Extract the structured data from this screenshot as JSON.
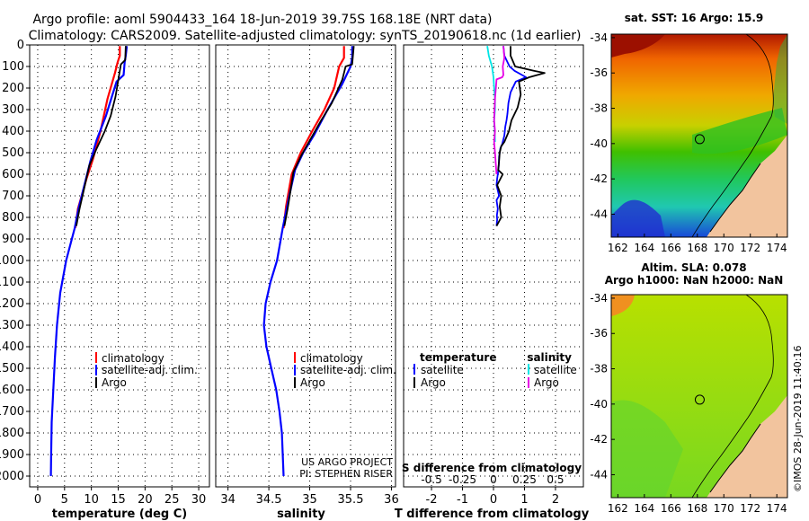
{
  "header": {
    "line1": "Argo profile: aoml 5904433_164 18-Jun-2019 39.75S 168.18E (NRT data)",
    "line2": "Climatology: CARS2009. Satellite-adjusted climatology: synTS_20190618.nc (1d earlier)"
  },
  "colors": {
    "climatology": "#ff0000",
    "satellite": "#0000ff",
    "argo": "#000000",
    "sat_salinity": "#00e5e5",
    "argo_salinity": "#e600e6"
  },
  "depth_axis": {
    "ticks": [
      0,
      100,
      200,
      300,
      400,
      500,
      600,
      700,
      800,
      900,
      1000,
      1100,
      1200,
      1300,
      1400,
      1500,
      1600,
      1700,
      1800,
      1900,
      2000
    ],
    "labels": [
      "0",
      "100",
      "200",
      "300",
      "400",
      "500",
      "600",
      "700",
      "800",
      "900",
      "1000",
      "1100",
      "1200",
      "1300",
      "1400",
      "1500",
      "1600",
      "1700",
      "1800",
      "1900",
      "2000"
    ]
  },
  "chart_data": [
    {
      "type": "line",
      "title": "",
      "xlabel": "temperature (deg C)",
      "xlim": [
        -1.5,
        32
      ],
      "ylim": [
        2050,
        0
      ],
      "xticks": [
        0,
        5,
        10,
        15,
        20,
        25,
        30
      ],
      "xtick_labels": [
        "0",
        "5",
        "10",
        "15",
        "20",
        "25",
        "30"
      ],
      "legend": {
        "position": "lower-middle",
        "entries": [
          "climatology",
          "satellite-adj. clim.",
          "Argo"
        ]
      },
      "series": [
        {
          "name": "climatology",
          "color": "#ff0000",
          "x": [
            15.3,
            15.3,
            14.9,
            14.4,
            13.0,
            11.7,
            10.3,
            9.1,
            7.5,
            7.0
          ],
          "y": [
            5,
            50,
            80,
            130,
            250,
            400,
            530,
            620,
            760,
            850
          ]
        },
        {
          "name": "satellite-adj. clim.",
          "color": "#0000ff",
          "x": [
            16.6,
            16.4,
            16.2,
            16.0,
            14.7,
            13.7,
            12.7,
            11.0,
            9.8,
            8.8,
            7.6,
            6.9,
            5.3,
            4.2,
            3.6,
            3.2,
            2.9,
            2.6,
            2.5,
            2.45
          ],
          "y": [
            5,
            50,
            80,
            140,
            170,
            250,
            330,
            440,
            540,
            640,
            760,
            850,
            1000,
            1150,
            1300,
            1450,
            1600,
            1750,
            1900,
            2000
          ]
        },
        {
          "name": "Argo",
          "color": "#000000",
          "x": [
            16.4,
            16.3,
            15.5,
            15.1,
            14.5,
            13.6,
            12.5,
            11.0,
            9.6,
            8.8,
            7.8,
            7.2
          ],
          "y": [
            5,
            70,
            90,
            150,
            240,
            330,
            400,
            480,
            560,
            650,
            760,
            840
          ]
        }
      ]
    },
    {
      "type": "line",
      "title": "",
      "xlabel": "salinity",
      "xlim": [
        33.85,
        36.05
      ],
      "ylim": [
        2050,
        0
      ],
      "xticks": [
        34,
        34.5,
        35,
        35.5,
        36
      ],
      "xtick_labels": [
        "34",
        "34.5",
        "35",
        "35.5",
        "36"
      ],
      "legend": {
        "position": "lower-middle",
        "entries": [
          "climatology",
          "satellite-adj. clim.",
          "Argo"
        ]
      },
      "annotation": [
        "US ARGO PROJECT",
        "PI: STEPHEN RISER"
      ],
      "series": [
        {
          "name": "climatology",
          "color": "#ff0000",
          "x": [
            35.42,
            35.42,
            35.36,
            35.3,
            35.18,
            35.03,
            34.89,
            34.78,
            34.71,
            34.68
          ],
          "y": [
            5,
            60,
            100,
            200,
            300,
            400,
            500,
            600,
            750,
            850
          ]
        },
        {
          "name": "satellite-adj. clim.",
          "color": "#0000ff",
          "x": [
            35.52,
            35.52,
            35.5,
            35.4,
            35.22,
            35.05,
            34.92,
            34.82,
            34.75,
            34.67,
            34.6,
            34.52,
            34.46,
            34.44,
            34.47,
            34.53,
            34.59,
            34.63,
            34.66,
            34.68
          ],
          "y": [
            5,
            60,
            100,
            180,
            300,
            420,
            500,
            580,
            700,
            850,
            1000,
            1100,
            1200,
            1300,
            1400,
            1500,
            1600,
            1700,
            1800,
            2000
          ]
        },
        {
          "name": "Argo",
          "color": "#000000",
          "x": [
            35.54,
            35.52,
            35.44,
            35.4,
            35.27,
            35.14,
            35.02,
            34.9,
            34.8,
            34.76,
            34.73,
            34.69
          ],
          "y": [
            5,
            90,
            100,
            160,
            270,
            350,
            430,
            510,
            590,
            690,
            760,
            840
          ]
        }
      ]
    },
    {
      "type": "line",
      "title": "",
      "xlabel": "T difference from climatology",
      "xlabel2": "S difference from climatology",
      "xlim": [
        -2.9,
        2.9
      ],
      "ylim": [
        2050,
        0
      ],
      "xticks": [
        -2,
        -1,
        0,
        1,
        2
      ],
      "xtick_labels": [
        "-2",
        "-1",
        "0",
        "1",
        "2"
      ],
      "xticks_top_labels": [
        "-0.5",
        "-0.25",
        "0",
        "0.25",
        "0.5"
      ],
      "xticks_top_values": [
        -2,
        -1,
        0,
        1,
        2
      ],
      "legend": {
        "position": "lower-middle",
        "left_title": "temperature",
        "right_title": "salinity",
        "left_entries": [
          "satellite",
          "Argo"
        ],
        "right_entries": [
          "satellite",
          "Argo"
        ]
      },
      "series": [
        {
          "name": "T satellite",
          "color": "#0000ff",
          "x": [
            0.32,
            0.35,
            0.52,
            0.68,
            1.05,
            0.72,
            0.55,
            0.48,
            0.45,
            0.42,
            0.38,
            0.35,
            0.28,
            0.22,
            0.18,
            0.17,
            0.14,
            0.12,
            0.1,
            0.18,
            0.1,
            0.14,
            0.11,
            0.12,
            0.1
          ],
          "y": [
            5,
            50,
            100,
            120,
            150,
            170,
            220,
            270,
            320,
            350,
            380,
            420,
            460,
            480,
            520,
            560,
            600,
            620,
            650,
            700,
            720,
            760,
            790,
            810,
            840
          ]
        },
        {
          "name": "T Argo",
          "color": "#000000",
          "x": [
            0.55,
            0.55,
            0.7,
            1.3,
            1.65,
            1.15,
            0.82,
            0.88,
            0.78,
            0.58,
            0.5,
            0.35,
            0.25,
            0.2,
            0.18,
            0.15,
            0.3,
            0.12,
            0.25,
            0.2,
            0.25,
            0.1
          ],
          "y": [
            5,
            50,
            100,
            120,
            130,
            150,
            170,
            230,
            290,
            350,
            400,
            450,
            470,
            500,
            540,
            580,
            600,
            650,
            700,
            750,
            800,
            840
          ]
        },
        {
          "name": "S satellite",
          "color": "#00e5e5",
          "x": [
            -0.2,
            -0.15,
            -0.05,
            0.0,
            0.02,
            0.05,
            0.05,
            0.02,
            0.04,
            0.05
          ],
          "y": [
            5,
            50,
            100,
            150,
            200,
            250,
            300,
            350,
            400,
            450
          ]
        },
        {
          "name": "S Argo",
          "color": "#e600e6",
          "x": [
            0.32,
            0.35,
            0.3,
            0.32,
            0.28,
            0.1,
            0.05,
            0.02,
            0.05,
            0.02,
            0.05,
            0.1
          ],
          "y": [
            5,
            60,
            100,
            140,
            150,
            160,
            250,
            350,
            400,
            450,
            500,
            600
          ]
        }
      ]
    },
    {
      "type": "heatmap",
      "title": "sat. SST: 16 Argo: 15.9",
      "xticks": [
        162,
        164,
        166,
        168,
        170,
        172,
        174
      ],
      "xtick_labels": [
        "162",
        "164",
        "166",
        "168",
        "170",
        "172",
        "174"
      ],
      "yticks": [
        -34,
        -36,
        -38,
        -40,
        -42,
        -44
      ],
      "ytick_labels": [
        "-34",
        "-36",
        "-38",
        "-40",
        "-42",
        "-44"
      ],
      "xlim": [
        161.5,
        174.8
      ],
      "ylim": [
        -45.3,
        -33.8
      ],
      "marker": {
        "lon": 168.18,
        "lat": -39.75
      }
    },
    {
      "type": "heatmap",
      "title": "Altim. SLA: 0.078",
      "subtitle": "Argo h1000: NaN h2000: NaN",
      "xticks": [
        162,
        164,
        166,
        168,
        170,
        172,
        174
      ],
      "xtick_labels": [
        "162",
        "164",
        "166",
        "168",
        "170",
        "172",
        "174"
      ],
      "yticks": [
        -34,
        -36,
        -38,
        -40,
        -42,
        -44
      ],
      "ytick_labels": [
        "-34",
        "-36",
        "-38",
        "-40",
        "-42",
        "-44"
      ],
      "xlim": [
        161.5,
        174.8
      ],
      "ylim": [
        -45.3,
        -33.8
      ],
      "marker": {
        "lon": 168.18,
        "lat": -39.75
      }
    }
  ],
  "credit": "©IMOS 28-Jun-2019 11:40:16"
}
